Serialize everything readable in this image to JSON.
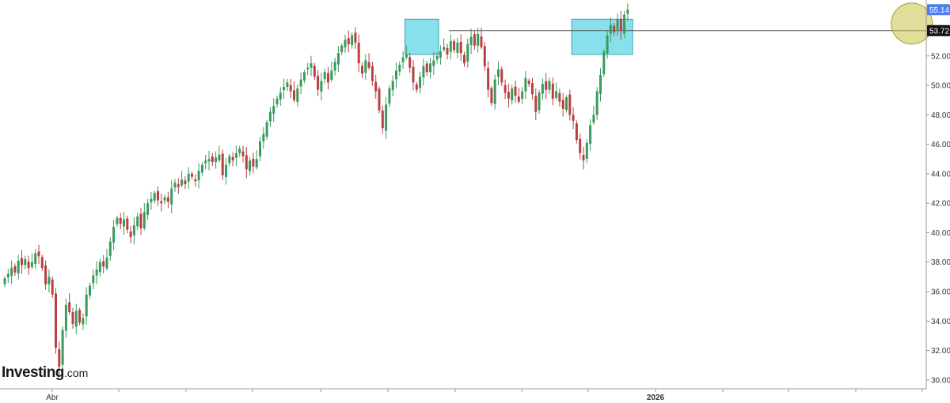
{
  "watermark": {
    "brand": "Investing",
    "suffix": ".com"
  },
  "price_tags": {
    "high_label": "55.14",
    "high_value": 55.14,
    "high_color": "#4f7df0",
    "current_label": "53.72",
    "current_value": 53.72,
    "current_color": "#111111"
  },
  "chart_data": {
    "type": "candlestick",
    "x_tick_labels": [
      "Abr",
      "2026"
    ],
    "y_ticks": [
      "30.00",
      "32.00",
      "34.00",
      "36.00",
      "38.00",
      "40.00",
      "42.00",
      "44.00",
      "46.00",
      "48.00",
      "50.00",
      "52.00"
    ],
    "ylim": [
      29.4,
      55.8
    ],
    "grid": false,
    "up_color": "#3a9a5b",
    "down_color": "#b84040",
    "resistance_level": 53.72,
    "highlight_zones": [
      {
        "x_from": 118,
        "x_to": 127,
        "y_from": 52.1,
        "y_to": 54.5,
        "color": "#5fd6e6"
      },
      {
        "x_from": 167,
        "x_to": 184,
        "y_from": 52.1,
        "y_to": 54.5,
        "color": "#5fd6e6"
      }
    ],
    "highlight_circle": {
      "x": 266,
      "y": 54.2,
      "color": "#c9c24a"
    },
    "closes": [
      36.9,
      37.2,
      37.6,
      37.3,
      38.1,
      37.8,
      38.2,
      37.6,
      38.0,
      38.6,
      38.4,
      37.6,
      36.5,
      37.0,
      35.8,
      32.2,
      30.9,
      33.4,
      35.1,
      34.6,
      33.8,
      34.7,
      33.9,
      34.2,
      35.8,
      36.4,
      37.1,
      37.5,
      38.0,
      37.7,
      38.3,
      39.4,
      40.4,
      41.0,
      40.6,
      40.9,
      40.2,
      39.7,
      40.5,
      41.1,
      40.3,
      41.4,
      42.0,
      42.3,
      42.7,
      42.2,
      42.0,
      42.4,
      42.1,
      43.0,
      43.4,
      43.1,
      43.6,
      43.3,
      44.0,
      43.8,
      43.5,
      44.2,
      44.6,
      44.9,
      45.0,
      44.8,
      45.1,
      45.3,
      43.9,
      44.6,
      45.2,
      44.9,
      45.4,
      45.7,
      45.2,
      44.3,
      44.9,
      44.5,
      45.0,
      46.2,
      46.7,
      47.5,
      48.2,
      48.6,
      49.1,
      49.5,
      49.9,
      50.2,
      49.6,
      49.0,
      49.8,
      50.4,
      50.9,
      51.2,
      51.5,
      50.6,
      49.7,
      50.3,
      50.9,
      50.2,
      51.0,
      51.6,
      52.2,
      52.7,
      53.1,
      52.8,
      53.4,
      52.9,
      51.5,
      50.8,
      51.7,
      51.2,
      50.3,
      49.6,
      48.3,
      47.1,
      48.7,
      49.8,
      50.3,
      51.0,
      51.4,
      51.9,
      52.1,
      51.2,
      50.2,
      49.7,
      50.6,
      51.3,
      50.9,
      51.5,
      51.7,
      52.0,
      52.3,
      52.6,
      52.1,
      53.0,
      52.4,
      52.9,
      52.2,
      51.5,
      52.8,
      53.3,
      52.7,
      53.5,
      52.6,
      51.3,
      49.7,
      48.8,
      50.4,
      51.1,
      50.2,
      49.5,
      49.1,
      49.8,
      49.3,
      48.9,
      49.6,
      50.5,
      50.1,
      49.4,
      48.2,
      49.5,
      50.1,
      49.7,
      50.3,
      49.1,
      49.6,
      48.9,
      48.4,
      49.2,
      48.0,
      47.6,
      46.3,
      45.4,
      44.9,
      46.1,
      47.3,
      48.0,
      49.6,
      50.7,
      52.3,
      53.4,
      54.1,
      53.6,
      54.5,
      53.7,
      54.8,
      55.14
    ]
  }
}
